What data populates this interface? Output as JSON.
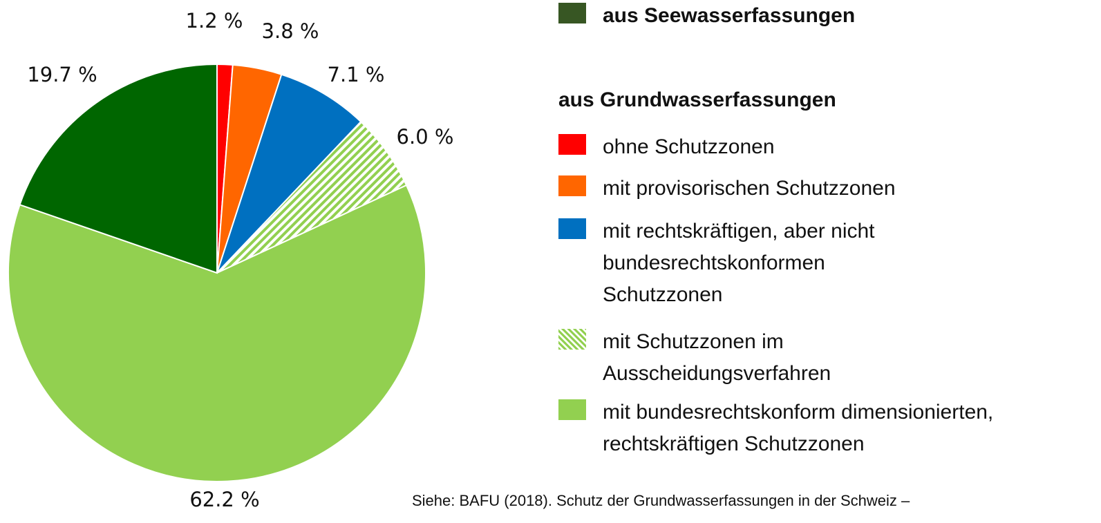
{
  "chart_data": {
    "type": "pie",
    "categories": [
      "ohne Schutzzonen",
      "mit provisorischen Schutzzonen",
      "mit rechtskräftigen, aber nicht\nbundesrechtskonformen\nSchutzzonen",
      "mit Schutzzonen im\nAusscheidungsverfahren",
      "mit bundesrechtskonform dimensionierten,\nrechtskräftigen Schutzzonen",
      "aus Seewasserfassungen"
    ],
    "values": [
      1.2,
      3.8,
      7.1,
      6.0,
      62.2,
      19.7
    ],
    "value_labels": [
      "1.2 %",
      "3.8 %",
      "7.1 %",
      "6.0 %",
      "62.2 %",
      "19.7 %"
    ],
    "colors": [
      "#ff0000",
      "#ff6600",
      "#0070c0",
      "#92d050",
      "#92d050",
      "#006600"
    ],
    "patterns": [
      "solid",
      "solid",
      "solid",
      "hatch",
      "solid",
      "solid"
    ],
    "legend_heading": "aus Grundwasserfassungen",
    "source": "Siehe: BAFU (2018). Schutz der Grundwasserfassungen in der Schweiz –"
  }
}
